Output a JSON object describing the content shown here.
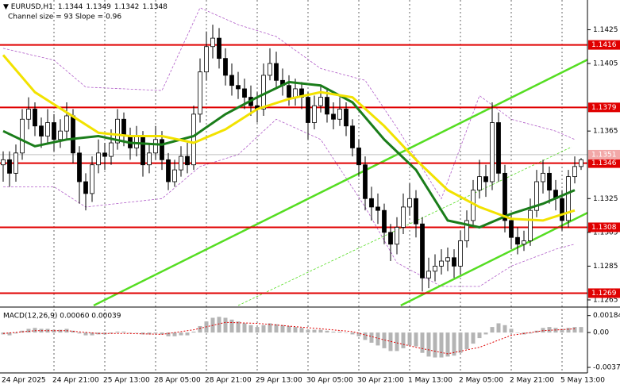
{
  "chart_data": {
    "type": "candlestick",
    "symbol": "EURUSD,H1",
    "header_ohlc": [
      1.1344,
      1.1349,
      1.1342,
      1.1348
    ],
    "indicator_label": "Channel size = 93 Slope = 0.96",
    "x_labels": [
      "24 Apr 2025",
      "24 Apr 21:00",
      "25 Apr 13:00",
      "28 Apr 05:00",
      "28 Apr 21:00",
      "29 Apr 13:00",
      "30 Apr 05:00",
      "30 Apr 21:00",
      "1 May 13:00",
      "2 May 05:00",
      "2 May 21:00",
      "5 May 13:00"
    ],
    "ylim": [
      1.12617,
      1.14426
    ],
    "yticks": [
      1.1425,
      1.1405,
      1.1365,
      1.1325,
      1.1305,
      1.1285,
      1.1265
    ],
    "candles": {
      "up_color": "#ffffff",
      "down_color": "#000000",
      "open": [
        1.1345,
        1.1348,
        1.134,
        1.1352,
        1.1372,
        1.1378,
        1.1368,
        1.1362,
        1.137,
        1.136,
        1.1365,
        1.1374,
        1.1352,
        1.1335,
        1.1328,
        1.1345,
        1.1352,
        1.135,
        1.1358,
        1.1372,
        1.1362,
        1.1355,
        1.1362,
        1.1345,
        1.1352,
        1.136,
        1.1348,
        1.1335,
        1.1342,
        1.135,
        1.1345,
        1.1375,
        1.14,
        1.1415,
        1.142,
        1.1408,
        1.1398,
        1.1392,
        1.139,
        1.1385,
        1.138,
        1.1378,
        1.1398,
        1.1405,
        1.1395,
        1.1392,
        1.1385,
        1.139,
        1.1385,
        1.137,
        1.138,
        1.1385,
        1.1375,
        1.1372,
        1.1378,
        1.1368,
        1.1355,
        1.1345,
        1.1325,
        1.132,
        1.1318,
        1.1305,
        1.1298,
        1.1308,
        1.132,
        1.1325,
        1.131,
        1.1278,
        1.1282,
        1.1285,
        1.1288,
        1.129,
        1.1285,
        1.13,
        1.1312,
        1.133,
        1.1338,
        1.1335,
        1.137,
        1.134,
        1.1312,
        1.1302,
        1.1298,
        1.13,
        1.1318,
        1.1335,
        1.134,
        1.133,
        1.1325,
        1.1312,
        1.1338,
        1.1344
      ],
      "high": [
        1.1353,
        1.1353,
        1.1357,
        1.1378,
        1.1385,
        1.1382,
        1.1373,
        1.1378,
        1.1375,
        1.1372,
        1.1382,
        1.1378,
        1.1356,
        1.134,
        1.135,
        1.136,
        1.1358,
        1.1366,
        1.1378,
        1.1376,
        1.1367,
        1.1368,
        1.1365,
        1.1358,
        1.1368,
        1.1365,
        1.1352,
        1.1348,
        1.1356,
        1.1358,
        1.138,
        1.1408,
        1.1424,
        1.1428,
        1.1426,
        1.1414,
        1.1405,
        1.14,
        1.1396,
        1.1392,
        1.1388,
        1.1405,
        1.1414,
        1.1412,
        1.1402,
        1.1398,
        1.1396,
        1.1394,
        1.1388,
        1.1386,
        1.1392,
        1.139,
        1.1382,
        1.1385,
        1.1382,
        1.1372,
        1.136,
        1.135,
        1.1332,
        1.1328,
        1.1322,
        1.131,
        1.1314,
        1.1328,
        1.1334,
        1.133,
        1.1314,
        1.129,
        1.1292,
        1.1295,
        1.1296,
        1.1295,
        1.1306,
        1.1318,
        1.1336,
        1.1348,
        1.1345,
        1.1382,
        1.1376,
        1.1345,
        1.1316,
        1.1308,
        1.1306,
        1.1325,
        1.1342,
        1.1348,
        1.1344,
        1.1336,
        1.133,
        1.1342,
        1.135,
        1.1349
      ],
      "low": [
        1.1335,
        1.1332,
        1.1335,
        1.1348,
        1.1366,
        1.1362,
        1.1355,
        1.1357,
        1.1353,
        1.1355,
        1.136,
        1.1346,
        1.1322,
        1.1318,
        1.1323,
        1.134,
        1.1342,
        1.1345,
        1.1354,
        1.1356,
        1.1348,
        1.135,
        1.1338,
        1.134,
        1.1348,
        1.1342,
        1.133,
        1.1332,
        1.1338,
        1.134,
        1.1342,
        1.137,
        1.1395,
        1.1408,
        1.1402,
        1.1392,
        1.1386,
        1.1384,
        1.1378,
        1.1374,
        1.137,
        1.1374,
        1.1395,
        1.139,
        1.1386,
        1.138,
        1.138,
        1.1378,
        1.136,
        1.1366,
        1.1376,
        1.137,
        1.1366,
        1.1368,
        1.1362,
        1.135,
        1.1338,
        1.1318,
        1.1312,
        1.131,
        1.1298,
        1.1288,
        1.1292,
        1.1304,
        1.1315,
        1.1302,
        1.127,
        1.1272,
        1.1276,
        1.128,
        1.1282,
        1.1278,
        1.128,
        1.1296,
        1.1308,
        1.1325,
        1.1326,
        1.133,
        1.1335,
        1.1305,
        1.1295,
        1.1292,
        1.1294,
        1.1297,
        1.1314,
        1.1328,
        1.1322,
        1.1318,
        1.1306,
        1.1308,
        1.1334,
        1.1342
      ],
      "close": [
        1.1348,
        1.134,
        1.1352,
        1.1372,
        1.1378,
        1.1368,
        1.1362,
        1.137,
        1.136,
        1.1365,
        1.1374,
        1.1352,
        1.1335,
        1.1328,
        1.1345,
        1.1352,
        1.135,
        1.1358,
        1.1372,
        1.1362,
        1.1355,
        1.1362,
        1.1345,
        1.1352,
        1.136,
        1.1348,
        1.1335,
        1.1342,
        1.135,
        1.1345,
        1.1375,
        1.14,
        1.1415,
        1.142,
        1.1408,
        1.1398,
        1.1392,
        1.139,
        1.1385,
        1.138,
        1.1378,
        1.1398,
        1.1405,
        1.1395,
        1.1392,
        1.1385,
        1.139,
        1.1385,
        1.137,
        1.138,
        1.1385,
        1.1375,
        1.1372,
        1.1378,
        1.1368,
        1.1355,
        1.1345,
        1.1325,
        1.132,
        1.1318,
        1.1305,
        1.1298,
        1.1308,
        1.132,
        1.1325,
        1.131,
        1.1278,
        1.1282,
        1.1285,
        1.1288,
        1.129,
        1.1285,
        1.13,
        1.1312,
        1.133,
        1.1338,
        1.1335,
        1.137,
        1.134,
        1.1312,
        1.1302,
        1.1298,
        1.13,
        1.1318,
        1.1335,
        1.134,
        1.133,
        1.1325,
        1.1312,
        1.1338,
        1.1344,
        1.1348
      ]
    },
    "series": [
      {
        "color": "#1a7d1a",
        "x": [
          0,
          5,
          10,
          15,
          20,
          25,
          30,
          35,
          40,
          45,
          50,
          55,
          60,
          65,
          70,
          75,
          80,
          85,
          90
        ],
        "values": [
          1.1365,
          1.1356,
          1.136,
          1.1362,
          1.1358,
          1.1357,
          1.1362,
          1.1375,
          1.1385,
          1.1394,
          1.1392,
          1.1382,
          1.136,
          1.1342,
          1.1312,
          1.1308,
          1.1316,
          1.1322,
          1.133
        ]
      },
      {
        "color": "#f2e200",
        "x": [
          0,
          5,
          10,
          15,
          20,
          25,
          30,
          35,
          40,
          45,
          50,
          55,
          60,
          65,
          70,
          75,
          80,
          85,
          90
        ],
        "values": [
          1.141,
          1.1388,
          1.1376,
          1.1364,
          1.1362,
          1.1362,
          1.1358,
          1.1366,
          1.1378,
          1.1384,
          1.1388,
          1.1385,
          1.1368,
          1.1348,
          1.133,
          1.132,
          1.1313,
          1.1312,
          1.1318
        ]
      }
    ],
    "bands": {
      "color": "#b05cc8",
      "x": [
        0,
        8,
        13,
        25,
        31,
        37,
        43,
        50,
        57,
        62,
        69,
        75,
        80,
        87,
        90
      ],
      "upper": [
        1.1414,
        1.1407,
        1.1391,
        1.1389,
        1.1438,
        1.1428,
        1.1421,
        1.1402,
        1.1395,
        1.1367,
        1.1325,
        1.1386,
        1.1372,
        1.1365,
        1.136
      ],
      "lower": [
        1.1332,
        1.1332,
        1.132,
        1.1325,
        1.1344,
        1.1351,
        1.1372,
        1.136,
        1.132,
        1.1287,
        1.1273,
        1.1273,
        1.1285,
        1.1295,
        1.1298
      ]
    },
    "channel": {
      "color": "#55dd22",
      "lines": [
        {
          "dashed": false,
          "x": [
            14.25,
            92
          ],
          "values": [
            1.12617,
            1.14072
          ]
        },
        {
          "dashed": false,
          "x": [
            62.6,
            92
          ],
          "values": [
            1.12617,
            1.13166
          ]
        },
        {
          "dashed": true,
          "x": [
            37,
            89.5
          ],
          "values": [
            1.12617,
            1.13556
          ]
        }
      ]
    },
    "levels": {
      "color": "#e00000",
      "values": [
        1.1416,
        1.1379,
        1.1346,
        1.1308,
        1.1269
      ]
    },
    "last_price": {
      "value": 1.1351,
      "color": "#f2a8a8"
    },
    "macd": {
      "label": "MACD(12,26,9) 0.00060 0.00039",
      "ylim": [
        -0.0042,
        0.0025
      ],
      "yticks": [
        0.00184,
        {
          "value": 0,
          "label": "0.00"
        },
        -0.00377
      ],
      "histogram": {
        "color": "#b4b4b4",
        "values": [
          -0.0002,
          -0.0003,
          -0.0001,
          0.0002,
          0.0004,
          0.0005,
          0.0004,
          0.0004,
          0.0003,
          0.0003,
          0.0004,
          0.0002,
          -0.0001,
          -0.0003,
          -0.0003,
          -0.0002,
          -0.0002,
          -0.0001,
          0.0001,
          0.0001,
          0,
          0,
          -0.0002,
          -0.0002,
          -0.0001,
          -0.0002,
          -0.0004,
          -0.0004,
          -0.0003,
          -0.0003,
          0.0001,
          0.0007,
          0.0012,
          0.0016,
          0.0017,
          0.0016,
          0.0014,
          0.0012,
          0.001,
          0.0008,
          0.0006,
          0.0008,
          0.001,
          0.0009,
          0.0008,
          0.0007,
          0.0006,
          0.0005,
          0.0003,
          0.0003,
          0.0003,
          0.0002,
          0.0001,
          0.0001,
          0,
          -0.0002,
          -0.0004,
          -0.0008,
          -0.0011,
          -0.0014,
          -0.0017,
          -0.002,
          -0.002,
          -0.0017,
          -0.0014,
          -0.0015,
          -0.0022,
          -0.0026,
          -0.0027,
          -0.0027,
          -0.0026,
          -0.0025,
          -0.0022,
          -0.0018,
          -0.0012,
          -0.0006,
          -0.0002,
          0.0006,
          0.001,
          0.0008,
          0.0004,
          0,
          -0.0002,
          -0.0001,
          0.0002,
          0.0005,
          0.0006,
          0.0005,
          0.0004,
          0.0005,
          0.0006,
          0.0006
        ]
      },
      "signal": {
        "color": "#e00000",
        "x": [
          0,
          5,
          10,
          15,
          20,
          25,
          30,
          35,
          40,
          45,
          50,
          55,
          60,
          65,
          70,
          75,
          80,
          85,
          90
        ],
        "values": [
          -0.0001,
          0.0002,
          0.0002,
          -0.0001,
          -0.0001,
          -0.0002,
          0.0003,
          0.0011,
          0.001,
          0.0007,
          0.0004,
          0.0001,
          -0.0008,
          -0.0016,
          -0.0023,
          -0.0016,
          -0.0003,
          0.0002,
          0.0004
        ]
      }
    }
  }
}
